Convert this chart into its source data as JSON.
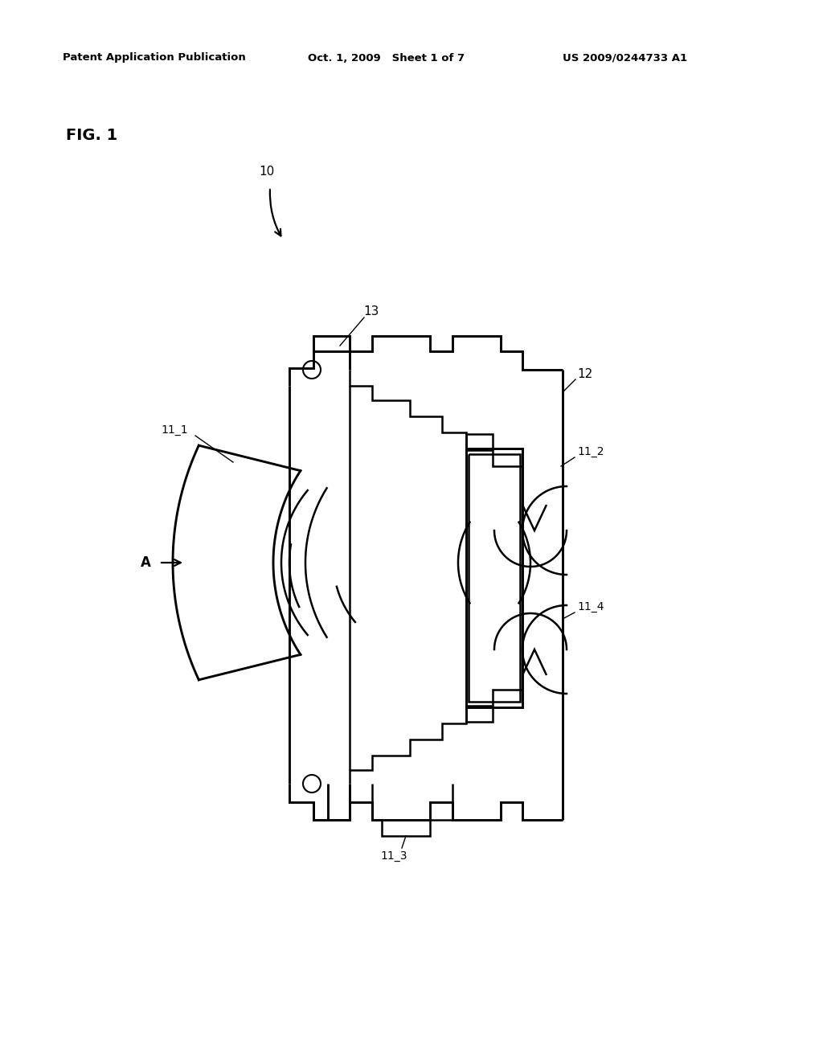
{
  "bg_color": "#ffffff",
  "header_left": "Patent Application Publication",
  "header_mid": "Oct. 1, 2009   Sheet 1 of 7",
  "header_right": "US 2009/0244733 A1",
  "fig_label": "FIG. 1",
  "label_10": "10",
  "label_11_1": "11_1",
  "label_11_2": "11_2",
  "label_11_3": "11_3",
  "label_11_4": "11_4",
  "label_12": "12",
  "label_13": "13",
  "label_A": "A",
  "line_color": "#000000",
  "line_width": 1.8
}
